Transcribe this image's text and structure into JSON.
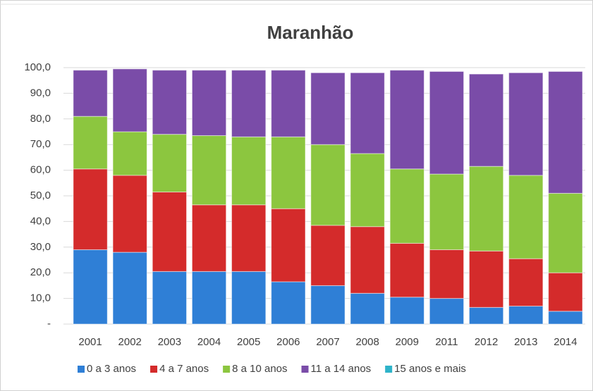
{
  "chart_data": {
    "type": "stacked_bar",
    "title": "Maranhão",
    "categories": [
      "2001",
      "2002",
      "2003",
      "2004",
      "2005",
      "2006",
      "2007",
      "2008",
      "2009",
      "2011",
      "2012",
      "2013",
      "2014"
    ],
    "series": [
      {
        "name": "0 a 3 anos",
        "color": "#2f7fd6",
        "values": [
          29,
          28,
          20.5,
          20.5,
          20.5,
          16.5,
          15,
          12,
          10.5,
          10,
          6.5,
          7,
          5
        ]
      },
      {
        "name": "4 a 7 anos",
        "color": "#d42b2b",
        "values": [
          31.5,
          30,
          31,
          26,
          26,
          28.5,
          23.5,
          26,
          21,
          19,
          22,
          18.5,
          15
        ]
      },
      {
        "name": "8 a 10 anos",
        "color": "#8cc63f",
        "values": [
          20.5,
          17,
          22.5,
          27,
          26.5,
          28,
          31.5,
          28.5,
          29,
          29.5,
          33,
          32.5,
          31
        ]
      },
      {
        "name": "11 a 14 anos",
        "color": "#7a4ca8",
        "values": [
          18,
          24.5,
          25,
          25.5,
          26,
          26,
          28,
          31.5,
          38.5,
          40,
          36,
          40,
          47.5
        ]
      },
      {
        "name": "15 anos e mais",
        "color": "#2eb3c9",
        "values": [
          0,
          0,
          0,
          0,
          0,
          0,
          0,
          0,
          0,
          0,
          0,
          0,
          0
        ]
      }
    ],
    "ylim": [
      0,
      100
    ],
    "yticks": [
      {
        "value": 0,
        "label": "-"
      },
      {
        "value": 10,
        "label": "10,0"
      },
      {
        "value": 20,
        "label": "20,0"
      },
      {
        "value": 30,
        "label": "30,0"
      },
      {
        "value": 40,
        "label": "40,0"
      },
      {
        "value": 50,
        "label": "50,0"
      },
      {
        "value": 60,
        "label": "60,0"
      },
      {
        "value": 70,
        "label": "70,0"
      },
      {
        "value": 80,
        "label": "80,0"
      },
      {
        "value": 90,
        "label": "90,0"
      },
      {
        "value": 100,
        "label": "100,0"
      }
    ],
    "grid": true,
    "legend": "bottom"
  }
}
